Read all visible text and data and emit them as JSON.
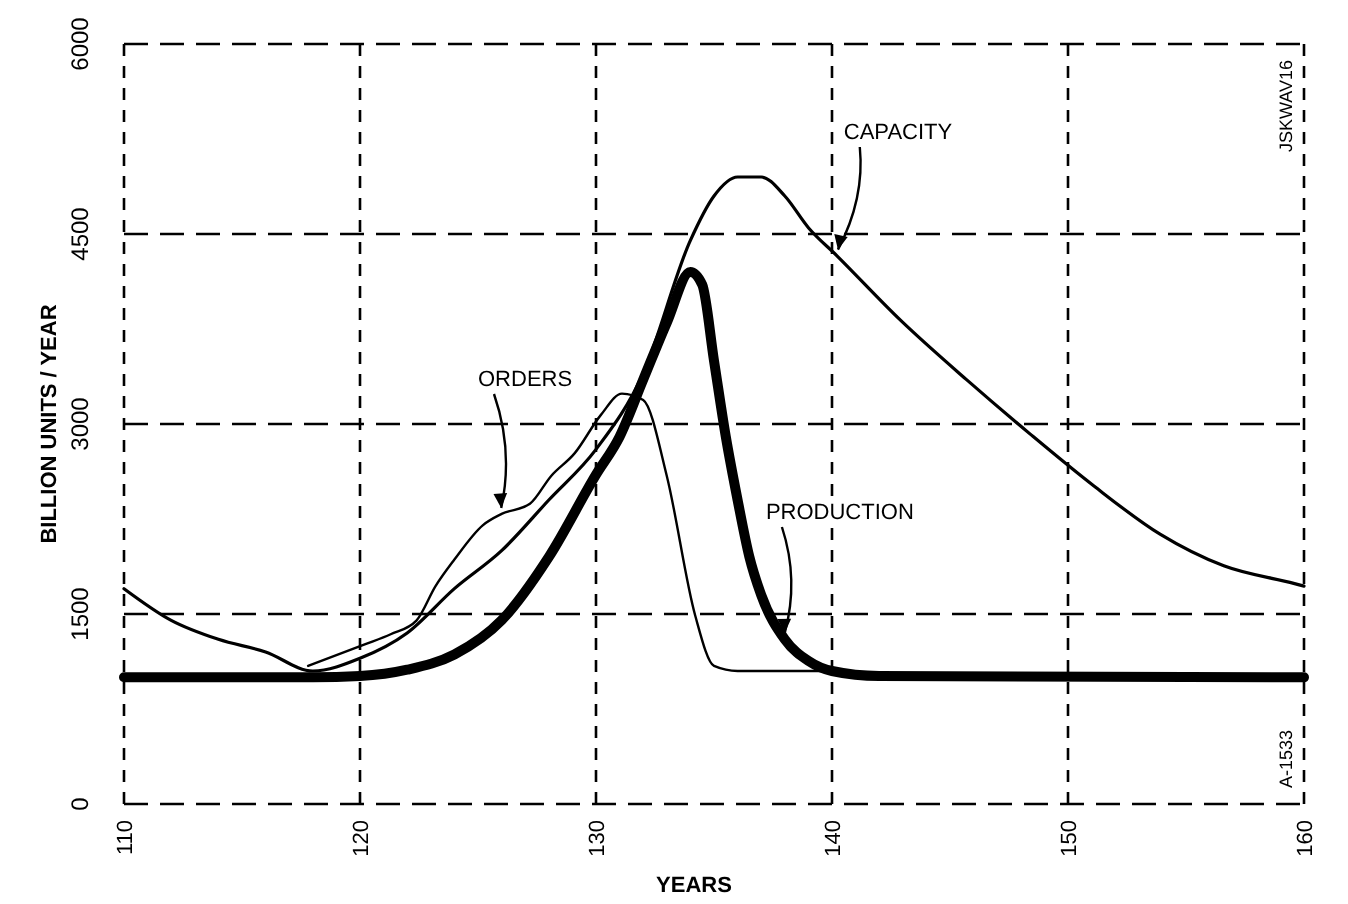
{
  "chart_data": {
    "type": "line",
    "xlabel": "YEARS",
    "ylabel": "BILLION UNITS / YEAR",
    "xlim": [
      110,
      160
    ],
    "xticks": [
      110,
      120,
      130,
      140,
      150,
      160
    ],
    "ylim": [
      0,
      6000
    ],
    "yticks": [
      0,
      1500,
      3000,
      4500,
      6000
    ],
    "grid": true,
    "marker": "none",
    "line_style": "solid",
    "series": [
      {
        "name": "CAPACITY",
        "color": "#000000",
        "x": [
          110,
          112,
          114,
          116,
          118,
          120,
          122,
          124,
          126,
          128,
          130,
          132,
          134,
          135,
          136,
          137,
          138,
          139,
          140.2,
          142.9,
          145.7,
          148.4,
          151.1,
          153.9,
          156.6,
          159.6,
          160
        ],
        "values": [
          1700,
          1450,
          1300,
          1200,
          1050,
          1150,
          1350,
          1700,
          2000,
          2400,
          2800,
          3400,
          4450,
          4800,
          4950,
          4950,
          4800,
          4550,
          4330,
          3820,
          3350,
          2920,
          2510,
          2130,
          1880,
          1740,
          1720
        ]
      },
      {
        "name": "ORDERS",
        "color": "#000000",
        "x": [
          117.8,
          120.2,
          121.3,
          122.4,
          123.2,
          124,
          125.2,
          126,
          127.2,
          128.1,
          129.1,
          130.2,
          131.1,
          132,
          133,
          134.2,
          135,
          136,
          137,
          138,
          139.3,
          140
        ],
        "values": [
          1090,
          1260,
          1340,
          1450,
          1720,
          1930,
          2200,
          2290,
          2370,
          2590,
          2770,
          3070,
          3240,
          3190,
          2590,
          1490,
          1090,
          1050,
          1050,
          1050,
          1050,
          1050
        ]
      },
      {
        "name": "PRODUCTION",
        "color": "#000000",
        "x": [
          110,
          118,
          120,
          122,
          124,
          126,
          128,
          130,
          131,
          132,
          133,
          134,
          134.5,
          135,
          135.5,
          136,
          136.5,
          137,
          138,
          139,
          140,
          142,
          160
        ],
        "values": [
          1000,
          1000,
          1010,
          1060,
          1180,
          1450,
          1950,
          2600,
          2900,
          3350,
          3800,
          4200,
          4100,
          3500,
          2900,
          2400,
          1950,
          1650,
          1300,
          1130,
          1050,
          1010,
          1000
        ]
      }
    ],
    "annotations": [
      "JSKWAV16",
      "A-1533"
    ]
  }
}
